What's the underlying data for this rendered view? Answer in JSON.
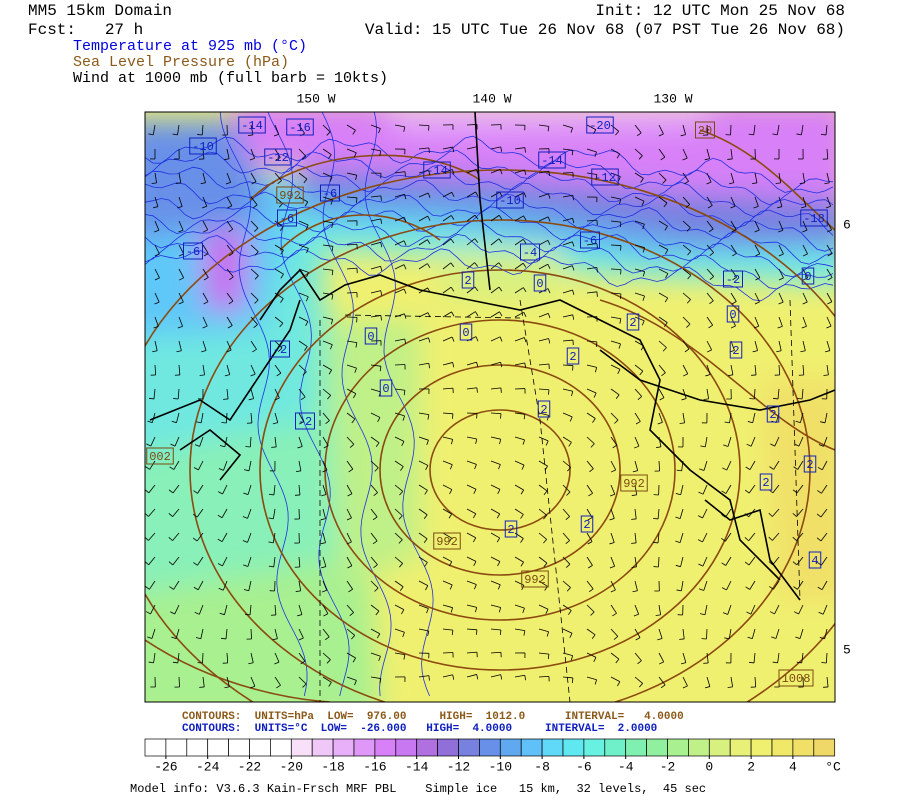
{
  "header": {
    "domain": "MM5 15km Domain",
    "forecast": "Fcst:   27 h",
    "init": "Init: 12 UTC Mon 25 Nov 68",
    "valid": "Valid: 15 UTC Tue 26 Nov 68 (07 PST Tue 26 Nov 68)",
    "fields": [
      "Temperature at 925 mb (°C)",
      "Sea Level Pressure (hPa)",
      "Wind at 1000 mb (full barb = 10kts)"
    ]
  },
  "map": {
    "longitude_labels": [
      "150 W",
      "140 W",
      "130 W"
    ],
    "latitude_labels": [
      "6",
      "5"
    ],
    "temperature_labels": [
      "-14",
      "-16",
      "-20",
      "-10",
      "-12",
      "-14",
      "-14",
      "-12",
      "-6",
      "-6",
      "-10",
      "-18",
      "-6",
      "-4",
      "-6",
      "-2",
      "0",
      "2",
      "0",
      "2",
      "0",
      "0",
      "0",
      "2",
      "2",
      "0",
      "2",
      "2",
      "-2",
      "2",
      "2",
      "2",
      "2",
      "4",
      "-2"
    ],
    "pressure_labels": [
      "20",
      "992",
      "992",
      "992",
      "992",
      "1008",
      "002"
    ]
  },
  "footer": {
    "pressure_contours": "CONTOURS:  UNITS=hPa  LOW=  976.00     HIGH=  1012.0      INTERVAL=   4.0000",
    "temperature_contours": "CONTOURS:  UNITS=°C  LOW=  -26.000   HIGH=  4.0000     INTERVAL=  2.0000",
    "model_info": "Model info: V3.6.3 Kain-Frsch MRF PBL    Simple ice   15 km,  32 levels,  45 sec"
  },
  "colorbar": {
    "lim": [
      -27,
      6
    ],
    "ticks": [
      -26,
      -24,
      -22,
      -20,
      -18,
      -16,
      -14,
      -12,
      -10,
      -8,
      -6,
      -4,
      -2,
      0,
      2,
      4
    ],
    "unit": "°C",
    "colors": [
      "#ffffff",
      "#ffffff",
      "#ffffff",
      "#ffffff",
      "#ffffff",
      "#ffffff",
      "#ffffff",
      "#f8e0f8",
      "#f0c8f8",
      "#e8b0f8",
      "#e098f8",
      "#d880f8",
      "#c878f0",
      "#b070e0",
      "#9070d8",
      "#7880e0",
      "#6890e8",
      "#60a8f0",
      "#60c0f8",
      "#60d8f8",
      "#60e8f0",
      "#68f0e0",
      "#70f0c8",
      "#80f0b0",
      "#90f0a0",
      "#a8f090",
      "#c0f088",
      "#d8f080",
      "#e8f078",
      "#f0f070",
      "#f0e868",
      "#f0e068",
      "#f0d868"
    ]
  }
}
